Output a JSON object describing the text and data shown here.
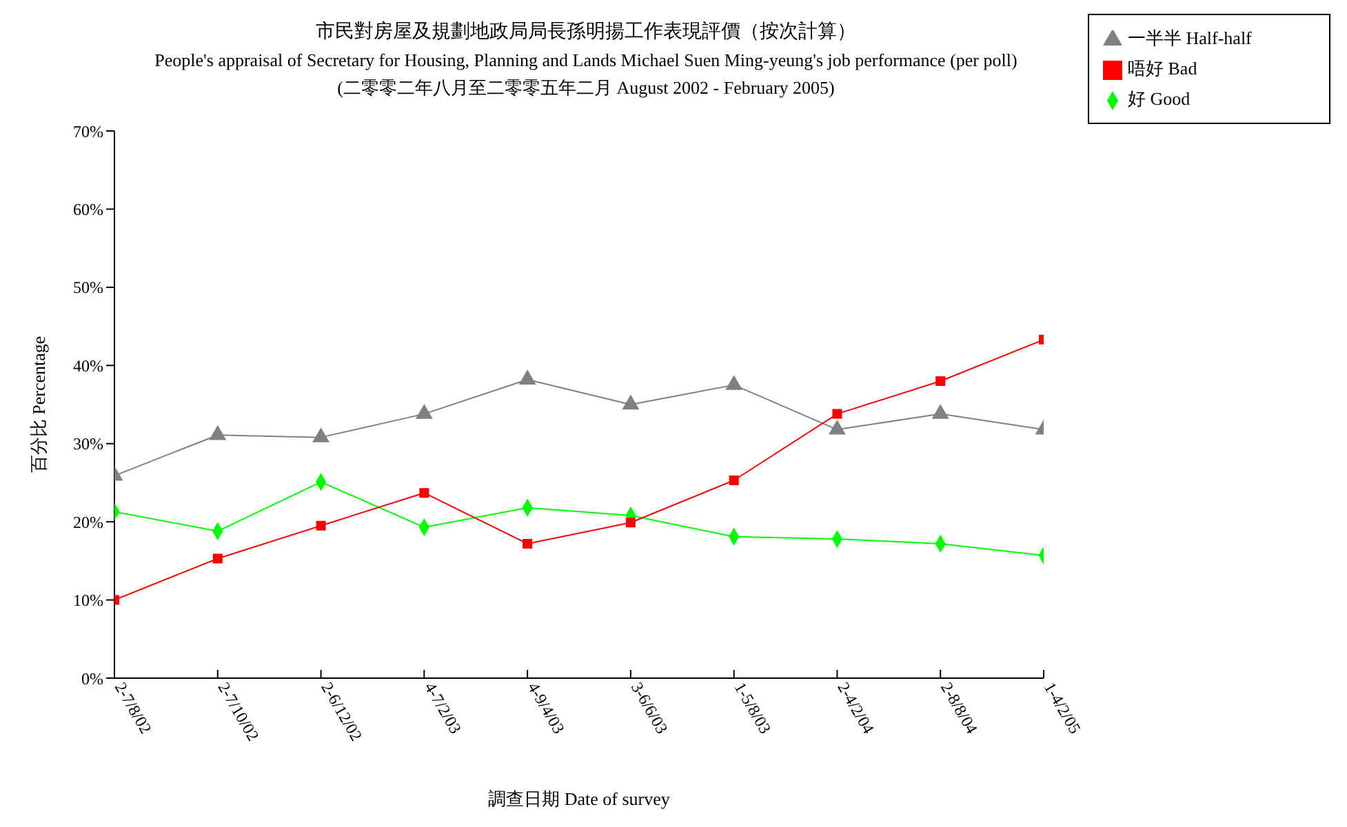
{
  "chart_data": {
    "type": "line",
    "title": "市民對房屋及規劃地政局局長孫明揚工作表現評價（按次計算）",
    "subtitle": "People's appraisal of Secretary for Housing, Planning and Lands Michael Suen Ming-yeung's job performance (per poll)",
    "annotations": [
      "(二零零二年八月至二零零五年二月 August 2002 - February 2005)"
    ],
    "xlabel": "調查日期 Date of survey",
    "ylabel": "百分比 Percentage",
    "categories": [
      "2-7/8/02",
      "2-7/10/02",
      "2-6/12/02",
      "4-7/2/03",
      "4-9/4/03",
      "3-6/6/03",
      "1-5/8/03",
      "2-4/2/04",
      "2-8/8/04",
      "1-4/2/05"
    ],
    "series": [
      {
        "name": "好 Good",
        "color": "#00ff00",
        "marker": "diamond",
        "values": [
          21.3,
          18.8,
          25.1,
          19.3,
          21.8,
          20.8,
          18.1,
          17.8,
          17.2,
          15.7
        ]
      },
      {
        "name": "一半半 Half-half",
        "color": "#808080",
        "marker": "triangle",
        "values": [
          25.9,
          31.1,
          30.8,
          33.8,
          38.2,
          35.0,
          37.5,
          31.8,
          33.8,
          31.8
        ]
      },
      {
        "name": "唔好 Bad",
        "color": "#ff0000",
        "marker": "square",
        "values": [
          10.0,
          15.3,
          19.5,
          23.7,
          17.2,
          19.9,
          25.3,
          33.8,
          38.0,
          43.3
        ]
      }
    ],
    "ylim": [
      0,
      70
    ],
    "yticks": [
      {
        "value": 0,
        "label": "0%"
      },
      {
        "value": 10,
        "label": "10%"
      },
      {
        "value": 20,
        "label": "20%"
      },
      {
        "value": 30,
        "label": "30%"
      },
      {
        "value": 40,
        "label": "40%"
      },
      {
        "value": 50,
        "label": "50%"
      },
      {
        "value": 60,
        "label": "60%"
      },
      {
        "value": 70,
        "label": "70%"
      }
    ],
    "grid": false,
    "legend": "top right"
  }
}
